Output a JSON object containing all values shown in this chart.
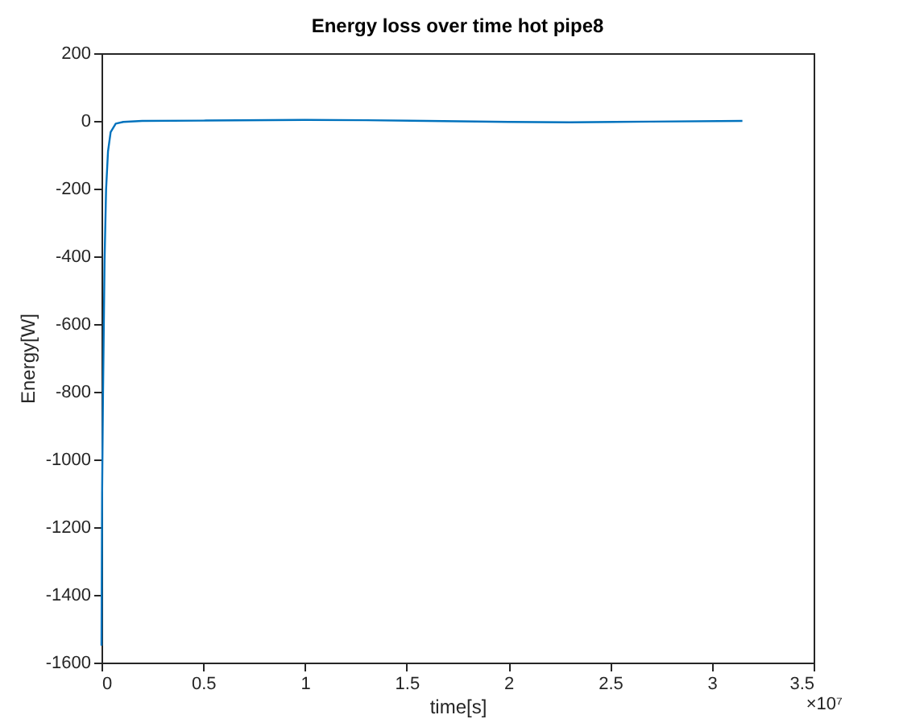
{
  "chart_data": {
    "type": "line",
    "title": "Energy loss over time hot pipe8",
    "xlabel": "time[s]",
    "ylabel": "Energy[W]",
    "annotations": [
      "×10⁷"
    ],
    "series": [
      {
        "color": "#0072bd",
        "x": [
          0,
          0.003,
          0.0075,
          0.015,
          0.0225,
          0.032,
          0.045,
          0.07,
          0.107,
          0.2,
          0.5,
          1.0,
          1.3,
          1.6,
          2.0,
          2.3,
          2.7,
          3.15
        ],
        "values": [
          -1550,
          -1100,
          -805,
          -415,
          -203,
          -90,
          -33,
          -8,
          -3,
          0,
          1,
          3,
          2,
          0,
          -3,
          -4,
          -2,
          0
        ]
      }
    ],
    "xlim": [
      0,
      3.5
    ],
    "xticks": [
      0,
      0.5,
      1,
      1.5,
      2,
      2.5,
      3,
      3.5
    ],
    "ylim": [
      -1600,
      200
    ],
    "yticks": [
      -1600,
      -1400,
      -1200,
      -1000,
      -800,
      -600,
      -400,
      -200,
      0,
      200
    ],
    "grid": false
  }
}
